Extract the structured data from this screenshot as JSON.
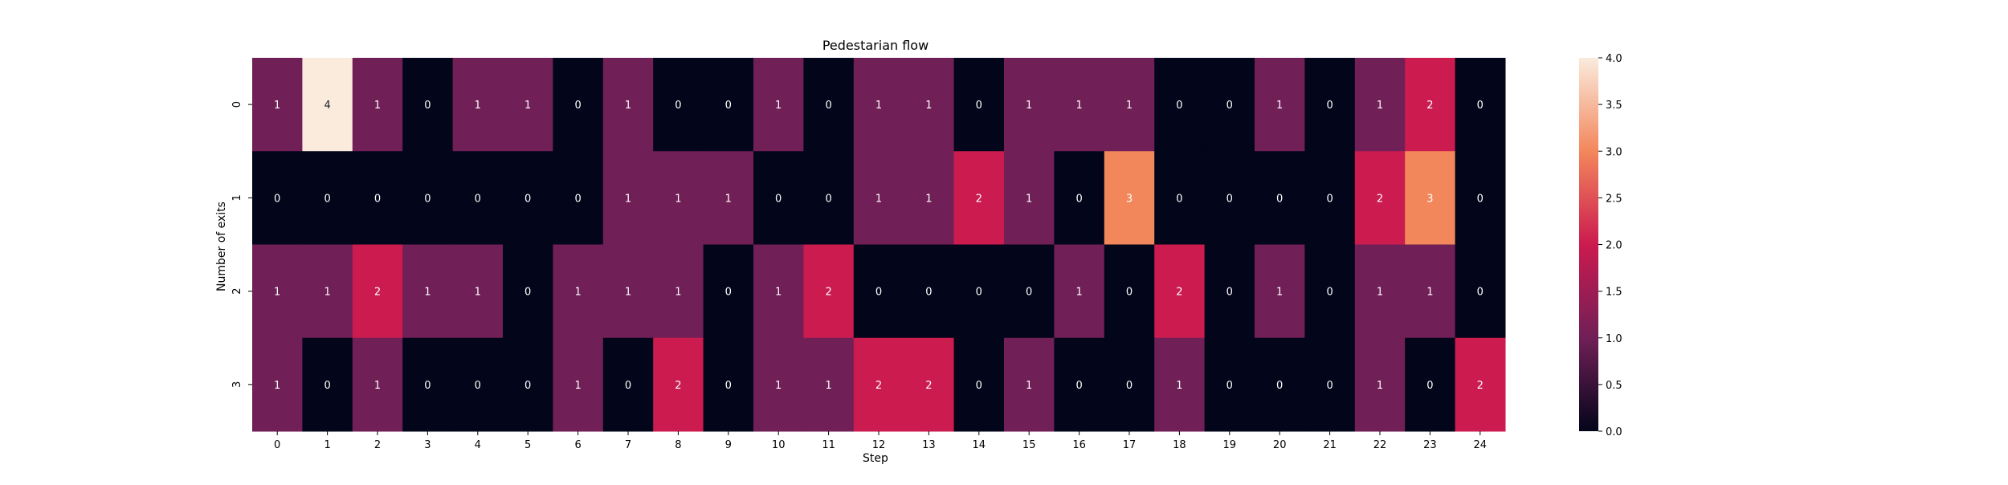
{
  "chart_data": {
    "type": "heatmap",
    "title": "Pedestarian flow",
    "xlabel": "Step",
    "ylabel": "Number of exits",
    "x_categories": [
      "0",
      "1",
      "2",
      "3",
      "4",
      "5",
      "6",
      "7",
      "8",
      "9",
      "10",
      "11",
      "12",
      "13",
      "14",
      "15",
      "16",
      "17",
      "18",
      "19",
      "20",
      "21",
      "22",
      "23",
      "24"
    ],
    "y_categories": [
      "0",
      "1",
      "2",
      "3"
    ],
    "values": [
      [
        1,
        4,
        1,
        0,
        1,
        1,
        0,
        1,
        0,
        0,
        1,
        0,
        1,
        1,
        0,
        1,
        1,
        1,
        0,
        0,
        1,
        0,
        1,
        2,
        0
      ],
      [
        0,
        0,
        0,
        0,
        0,
        0,
        0,
        1,
        1,
        1,
        0,
        0,
        1,
        1,
        2,
        1,
        0,
        3,
        0,
        0,
        0,
        0,
        2,
        3,
        0
      ],
      [
        1,
        1,
        2,
        1,
        1,
        0,
        1,
        1,
        1,
        0,
        1,
        2,
        0,
        0,
        0,
        0,
        1,
        0,
        2,
        0,
        1,
        0,
        1,
        1,
        0
      ],
      [
        1,
        0,
        1,
        0,
        0,
        0,
        1,
        0,
        2,
        0,
        1,
        1,
        2,
        2,
        0,
        1,
        0,
        0,
        1,
        0,
        0,
        0,
        1,
        0,
        2
      ]
    ],
    "colorbar": {
      "min": 0,
      "max": 4,
      "ticks": [
        "0.0",
        "0.5",
        "1.0",
        "1.5",
        "2.0",
        "2.5",
        "3.0",
        "3.5",
        "4.0"
      ],
      "colormap": "rocket",
      "colors": {
        "0": "#03051a",
        "1": "#701f57",
        "2": "#cb1b4f",
        "3": "#f3875c",
        "4": "#faebdd"
      }
    },
    "annotation_colors": {
      "dark_text": "#262626",
      "light_text": "#ffffff"
    }
  }
}
